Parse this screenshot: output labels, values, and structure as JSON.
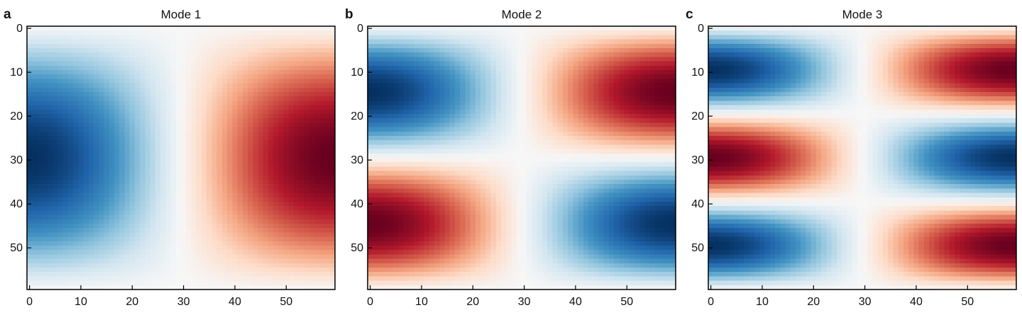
{
  "figure": {
    "colormap": {
      "name": "RdBu_r",
      "stops": [
        "#053061",
        "#2166ac",
        "#4393c3",
        "#92c5de",
        "#d1e5f0",
        "#f7f7f7",
        "#fddbc7",
        "#f4a582",
        "#d6604d",
        "#b2182b",
        "#67001f"
      ]
    }
  },
  "chart_data": [
    {
      "type": "heatmap",
      "panel_label": "a",
      "title": "Mode 1",
      "grid": false,
      "dims": [
        60,
        60
      ],
      "xlim": [
        0,
        59
      ],
      "ylim": [
        59,
        0
      ],
      "xticks": [
        0,
        10,
        20,
        30,
        40,
        50
      ],
      "yticks": [
        0,
        10,
        20,
        30,
        40,
        50
      ],
      "vrange": [
        -1,
        1
      ],
      "field": "cos(pi*x/59) * sin(pi*y/59)",
      "extrema": [
        {
          "x": 0,
          "y": 30,
          "value": -1
        },
        {
          "x": 59,
          "y": 30,
          "value": 1
        }
      ]
    },
    {
      "type": "heatmap",
      "panel_label": "b",
      "title": "Mode 2",
      "grid": false,
      "dims": [
        60,
        60
      ],
      "xlim": [
        0,
        59
      ],
      "ylim": [
        59,
        0
      ],
      "xticks": [
        0,
        10,
        20,
        30,
        40,
        50
      ],
      "yticks": [
        0,
        10,
        20,
        30,
        40,
        50
      ],
      "vrange": [
        -1,
        1
      ],
      "field": "cos(pi*x/59) * sin(2*pi*y/59)",
      "extrema": [
        {
          "x": 0,
          "y": 15,
          "value": -1
        },
        {
          "x": 59,
          "y": 15,
          "value": 1
        },
        {
          "x": 0,
          "y": 44,
          "value": 1
        },
        {
          "x": 59,
          "y": 44,
          "value": -1
        }
      ]
    },
    {
      "type": "heatmap",
      "panel_label": "c",
      "title": "Mode 3",
      "grid": false,
      "dims": [
        60,
        60
      ],
      "xlim": [
        0,
        59
      ],
      "ylim": [
        59,
        0
      ],
      "xticks": [
        0,
        10,
        20,
        30,
        40,
        50
      ],
      "yticks": [
        0,
        10,
        20,
        30,
        40,
        50
      ],
      "vrange": [
        -1,
        1
      ],
      "field": "cos(pi*x/59) * sin(3*pi*y/59)",
      "extrema": [
        {
          "x": 0,
          "y": 10,
          "value": -1
        },
        {
          "x": 59,
          "y": 10,
          "value": 1
        },
        {
          "x": 0,
          "y": 30,
          "value": 1
        },
        {
          "x": 59,
          "y": 30,
          "value": -1
        },
        {
          "x": 0,
          "y": 49,
          "value": -1
        },
        {
          "x": 59,
          "y": 49,
          "value": 1
        }
      ]
    }
  ]
}
